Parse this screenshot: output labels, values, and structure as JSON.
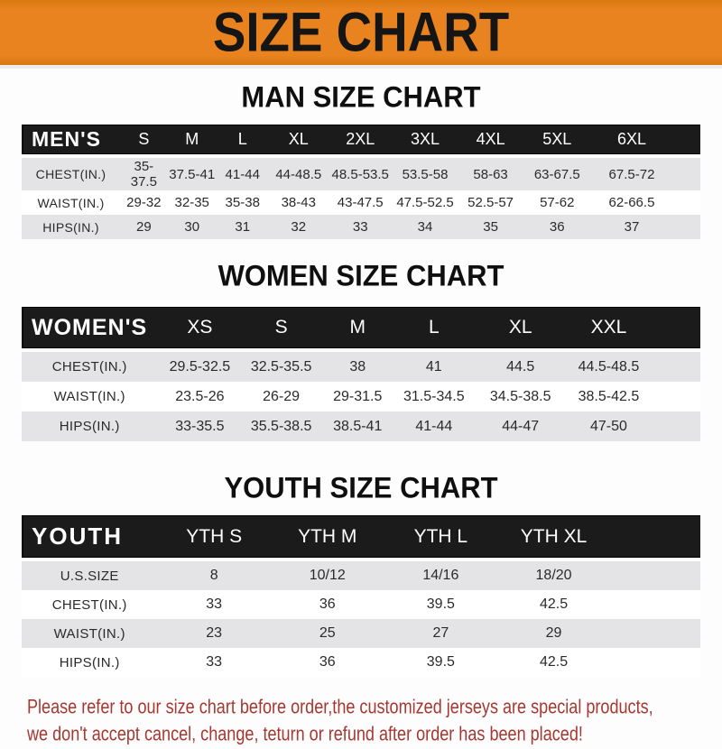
{
  "banner": {
    "title": "SIZE CHART"
  },
  "colors": {
    "banner_orange": "#E8831F",
    "header_bar_black": "#1B1B1B",
    "row_gray": "#E4E4E6",
    "footer_red": "#A63831"
  },
  "chart_data": [
    {
      "type": "table",
      "title": "MAN SIZE CHART",
      "header_label": "MEN'S",
      "columns": [
        "S",
        "M",
        "L",
        "XL",
        "2XL",
        "3XL",
        "4XL",
        "5XL",
        "6XL"
      ],
      "rows": [
        {
          "label": "CHEST(IN.)",
          "values": [
            "35-37.5",
            "37.5-41",
            "41-44",
            "44-48.5",
            "48.5-53.5",
            "53.5-58",
            "58-63",
            "63-67.5",
            "67.5-72"
          ]
        },
        {
          "label": "WAIST(IN.)",
          "values": [
            "29-32",
            "32-35",
            "35-38",
            "38-43",
            "43-47.5",
            "47.5-52.5",
            "52.5-57",
            "57-62",
            "62-66.5"
          ]
        },
        {
          "label": "HIPS(IN.)",
          "values": [
            "29",
            "30",
            "31",
            "32",
            "33",
            "34",
            "35",
            "36",
            "37"
          ]
        }
      ]
    },
    {
      "type": "table",
      "title": "WOMEN SIZE CHART",
      "header_label": "WOMEN'S",
      "columns": [
        "XS",
        "S",
        "M",
        "L",
        "XL",
        "XXL"
      ],
      "rows": [
        {
          "label": "CHEST(IN.)",
          "values": [
            "29.5-32.5",
            "32.5-35.5",
            "38",
            "41",
            "44.5",
            "44.5-48.5"
          ]
        },
        {
          "label": "WAIST(IN.)",
          "values": [
            "23.5-26",
            "26-29",
            "29-31.5",
            "31.5-34.5",
            "34.5-38.5",
            "38.5-42.5"
          ]
        },
        {
          "label": "HIPS(IN.)",
          "values": [
            "33-35.5",
            "35.5-38.5",
            "38.5-41",
            "41-44",
            "44-47",
            "47-50"
          ]
        }
      ]
    },
    {
      "type": "table",
      "title": "YOUTH SIZE CHART",
      "header_label": "YOUTH",
      "columns": [
        "YTH S",
        "YTH M",
        "YTH L",
        "YTH XL"
      ],
      "rows": [
        {
          "label": "U.S.SIZE",
          "values": [
            "8",
            "10/12",
            "14/16",
            "18/20"
          ]
        },
        {
          "label": "CHEST(IN.)",
          "values": [
            "33",
            "36",
            "39.5",
            "42.5"
          ]
        },
        {
          "label": "WAIST(IN.)",
          "values": [
            "23",
            "25",
            "27",
            "29"
          ]
        },
        {
          "label": "HIPS(IN.)",
          "values": [
            "33",
            "36",
            "39.5",
            "42.5"
          ]
        }
      ]
    }
  ],
  "footer": {
    "line1": "Please refer to our size chart before order,the customized jerseys are special products,",
    "line2": "we don't accept cancel, change, teturn or refund after order has been placed!"
  }
}
